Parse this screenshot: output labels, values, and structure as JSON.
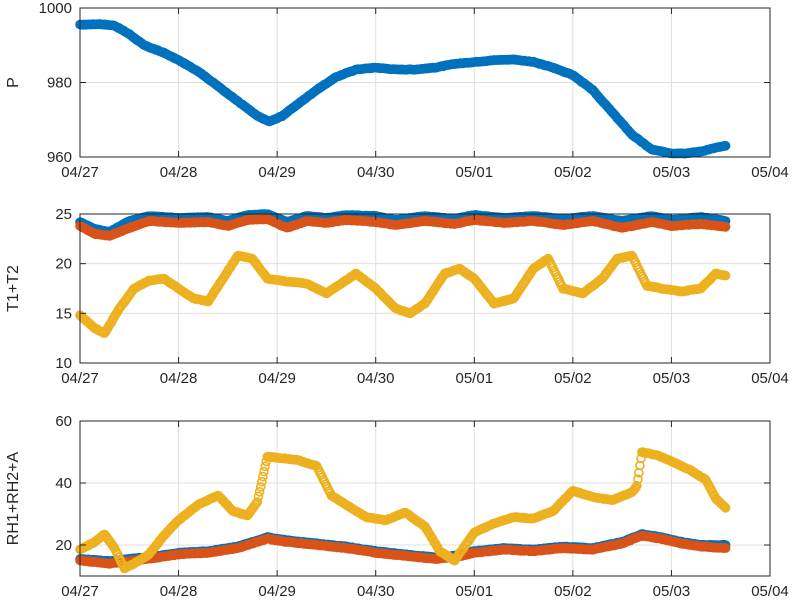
{
  "chart_data": [
    {
      "type": "scatter",
      "ylabel": "P",
      "xlabel": "",
      "xticks": [
        "04/27",
        "04/28",
        "04/29",
        "04/30",
        "05/01",
        "05/02",
        "05/03",
        "05/04"
      ],
      "xlim": [
        0,
        7
      ],
      "ylim": [
        960,
        1000
      ],
      "yticks": [
        960,
        980,
        1000
      ],
      "grid": true,
      "series": [
        {
          "color": "#0072BD",
          "points": [
            [
              0,
              995.5
            ],
            [
              0.2,
              995.7
            ],
            [
              0.35,
              995.3
            ],
            [
              0.5,
              993
            ],
            [
              0.65,
              990
            ],
            [
              0.85,
              988
            ],
            [
              1.0,
              986
            ],
            [
              1.2,
              983
            ],
            [
              1.4,
              979
            ],
            [
              1.6,
              975
            ],
            [
              1.8,
              971
            ],
            [
              1.92,
              969.5
            ],
            [
              2.05,
              971
            ],
            [
              2.2,
              974
            ],
            [
              2.4,
              978
            ],
            [
              2.6,
              981.5
            ],
            [
              2.8,
              983.5
            ],
            [
              3.0,
              984
            ],
            [
              3.2,
              983.5
            ],
            [
              3.4,
              983.5
            ],
            [
              3.6,
              984
            ],
            [
              3.8,
              985
            ],
            [
              4.0,
              985.5
            ],
            [
              4.2,
              986
            ],
            [
              4.4,
              986.2
            ],
            [
              4.6,
              985.5
            ],
            [
              4.8,
              984
            ],
            [
              5.0,
              982
            ],
            [
              5.2,
              978
            ],
            [
              5.4,
              972
            ],
            [
              5.6,
              966
            ],
            [
              5.8,
              962
            ],
            [
              6.0,
              961
            ],
            [
              6.15,
              961
            ],
            [
              6.3,
              961.5
            ],
            [
              6.45,
              962.5
            ],
            [
              6.55,
              963
            ]
          ]
        }
      ]
    },
    {
      "type": "scatter",
      "ylabel": "T1+T2",
      "xlabel": "",
      "xticks": [
        "04/27",
        "04/28",
        "04/29",
        "04/30",
        "05/01",
        "05/02",
        "05/03",
        "05/04"
      ],
      "xlim": [
        0,
        7
      ],
      "ylim": [
        10,
        25
      ],
      "yticks": [
        10,
        15,
        20,
        25
      ],
      "grid": true,
      "series": [
        {
          "color": "#0072BD",
          "points": [
            [
              0,
              24.2
            ],
            [
              0.15,
              23.5
            ],
            [
              0.3,
              23.2
            ],
            [
              0.5,
              24.3
            ],
            [
              0.7,
              24.8
            ],
            [
              1.0,
              24.6
            ],
            [
              1.3,
              24.7
            ],
            [
              1.5,
              24.3
            ],
            [
              1.7,
              24.9
            ],
            [
              1.9,
              25.0
            ],
            [
              2.1,
              24.2
            ],
            [
              2.3,
              24.8
            ],
            [
              2.5,
              24.6
            ],
            [
              2.7,
              24.9
            ],
            [
              3.0,
              24.8
            ],
            [
              3.2,
              24.4
            ],
            [
              3.5,
              24.8
            ],
            [
              3.8,
              24.5
            ],
            [
              4.0,
              24.9
            ],
            [
              4.3,
              24.6
            ],
            [
              4.6,
              24.8
            ],
            [
              4.9,
              24.5
            ],
            [
              5.2,
              24.8
            ],
            [
              5.5,
              24.3
            ],
            [
              5.8,
              24.8
            ],
            [
              6.0,
              24.4
            ],
            [
              6.3,
              24.7
            ],
            [
              6.55,
              24.3
            ]
          ]
        },
        {
          "color": "#D95319",
          "points": [
            [
              0,
              23.8
            ],
            [
              0.15,
              23.0
            ],
            [
              0.3,
              22.8
            ],
            [
              0.5,
              23.6
            ],
            [
              0.7,
              24.3
            ],
            [
              1.0,
              24.1
            ],
            [
              1.3,
              24.2
            ],
            [
              1.5,
              23.8
            ],
            [
              1.7,
              24.4
            ],
            [
              1.9,
              24.5
            ],
            [
              2.1,
              23.6
            ],
            [
              2.3,
              24.3
            ],
            [
              2.5,
              24.1
            ],
            [
              2.7,
              24.4
            ],
            [
              3.0,
              24.2
            ],
            [
              3.2,
              23.9
            ],
            [
              3.5,
              24.3
            ],
            [
              3.8,
              24.0
            ],
            [
              4.0,
              24.4
            ],
            [
              4.3,
              24.1
            ],
            [
              4.6,
              24.3
            ],
            [
              4.9,
              23.9
            ],
            [
              5.2,
              24.3
            ],
            [
              5.5,
              23.6
            ],
            [
              5.8,
              24.2
            ],
            [
              6.0,
              23.8
            ],
            [
              6.3,
              24.0
            ],
            [
              6.55,
              23.7
            ]
          ]
        },
        {
          "color": "#EDB120",
          "points": [
            [
              0,
              14.8
            ],
            [
              0.15,
              13.5
            ],
            [
              0.25,
              13.0
            ],
            [
              0.4,
              15.5
            ],
            [
              0.55,
              17.5
            ],
            [
              0.7,
              18.3
            ],
            [
              0.85,
              18.5
            ],
            [
              1.0,
              17.5
            ],
            [
              1.15,
              16.5
            ],
            [
              1.3,
              16.2
            ],
            [
              1.45,
              18.5
            ],
            [
              1.6,
              20.8
            ],
            [
              1.75,
              20.5
            ],
            [
              1.9,
              18.5
            ],
            [
              2.1,
              18.2
            ],
            [
              2.3,
              18.0
            ],
            [
              2.5,
              17.0
            ],
            [
              2.65,
              18.0
            ],
            [
              2.8,
              19.0
            ],
            [
              3.0,
              17.5
            ],
            [
              3.2,
              15.5
            ],
            [
              3.35,
              15.0
            ],
            [
              3.5,
              16.0
            ],
            [
              3.7,
              19.0
            ],
            [
              3.85,
              19.5
            ],
            [
              4.0,
              18.5
            ],
            [
              4.2,
              16.0
            ],
            [
              4.4,
              16.5
            ],
            [
              4.6,
              19.5
            ],
            [
              4.75,
              20.5
            ],
            [
              4.9,
              17.5
            ],
            [
              5.1,
              17.0
            ],
            [
              5.3,
              18.5
            ],
            [
              5.45,
              20.5
            ],
            [
              5.6,
              20.8
            ],
            [
              5.75,
              17.8
            ],
            [
              5.9,
              17.5
            ],
            [
              6.1,
              17.2
            ],
            [
              6.3,
              17.5
            ],
            [
              6.45,
              19.0
            ],
            [
              6.55,
              18.8
            ]
          ]
        }
      ]
    },
    {
      "type": "scatter",
      "ylabel": "RH1+RH2+A",
      "xlabel": "",
      "xticks": [
        "04/27",
        "04/28",
        "04/29",
        "04/30",
        "05/01",
        "05/02",
        "05/03",
        "05/04"
      ],
      "xlim": [
        0,
        7
      ],
      "ylim": [
        10,
        60
      ],
      "yticks": [
        20,
        40,
        60
      ],
      "grid": true,
      "series": [
        {
          "color": "#0072BD",
          "points": [
            [
              0,
              15.5
            ],
            [
              0.3,
              14.8
            ],
            [
              0.5,
              15.5
            ],
            [
              0.8,
              16.5
            ],
            [
              1.0,
              17.5
            ],
            [
              1.3,
              18.0
            ],
            [
              1.6,
              19.5
            ],
            [
              1.9,
              22.5
            ],
            [
              2.1,
              21.5
            ],
            [
              2.4,
              20.5
            ],
            [
              2.7,
              19.5
            ],
            [
              3.0,
              18.0
            ],
            [
              3.3,
              17.0
            ],
            [
              3.6,
              16.0
            ],
            [
              3.8,
              16.5
            ],
            [
              4.0,
              18.0
            ],
            [
              4.3,
              19.0
            ],
            [
              4.6,
              18.5
            ],
            [
              4.9,
              19.5
            ],
            [
              5.2,
              19.0
            ],
            [
              5.5,
              21.0
            ],
            [
              5.7,
              23.5
            ],
            [
              5.9,
              22.5
            ],
            [
              6.1,
              21.0
            ],
            [
              6.3,
              20.0
            ],
            [
              6.55,
              20.0
            ]
          ]
        },
        {
          "color": "#D95319",
          "points": [
            [
              0,
              15.0
            ],
            [
              0.3,
              14.0
            ],
            [
              0.5,
              14.8
            ],
            [
              0.8,
              16.0
            ],
            [
              1.0,
              17.0
            ],
            [
              1.3,
              17.5
            ],
            [
              1.6,
              19.0
            ],
            [
              1.9,
              22.0
            ],
            [
              2.1,
              21.0
            ],
            [
              2.4,
              20.0
            ],
            [
              2.7,
              19.0
            ],
            [
              3.0,
              17.5
            ],
            [
              3.3,
              16.5
            ],
            [
              3.6,
              15.5
            ],
            [
              3.8,
              16.0
            ],
            [
              4.0,
              17.5
            ],
            [
              4.3,
              18.5
            ],
            [
              4.6,
              18.0
            ],
            [
              4.9,
              19.0
            ],
            [
              5.2,
              18.5
            ],
            [
              5.5,
              20.5
            ],
            [
              5.7,
              23.0
            ],
            [
              5.9,
              22.0
            ],
            [
              6.1,
              20.5
            ],
            [
              6.3,
              19.5
            ],
            [
              6.55,
              19.0
            ]
          ]
        },
        {
          "color": "#EDB120",
          "points": [
            [
              0,
              18.5
            ],
            [
              0.15,
              21.0
            ],
            [
              0.25,
              23.5
            ],
            [
              0.35,
              19.0
            ],
            [
              0.45,
              12.5
            ],
            [
              0.55,
              14.0
            ],
            [
              0.7,
              17.0
            ],
            [
              0.85,
              23.0
            ],
            [
              1.0,
              28.0
            ],
            [
              1.2,
              33.0
            ],
            [
              1.4,
              36.0
            ],
            [
              1.55,
              31.0
            ],
            [
              1.7,
              29.5
            ],
            [
              1.8,
              34.0
            ],
            [
              1.9,
              48.5
            ],
            [
              2.05,
              48.0
            ],
            [
              2.2,
              47.5
            ],
            [
              2.4,
              45.5
            ],
            [
              2.55,
              36.0
            ],
            [
              2.7,
              33.0
            ],
            [
              2.9,
              29.0
            ],
            [
              3.1,
              28.0
            ],
            [
              3.3,
              30.5
            ],
            [
              3.5,
              26.0
            ],
            [
              3.65,
              18.0
            ],
            [
              3.8,
              15.0
            ],
            [
              4.0,
              24.0
            ],
            [
              4.2,
              27.0
            ],
            [
              4.4,
              29.0
            ],
            [
              4.6,
              28.5
            ],
            [
              4.8,
              31.0
            ],
            [
              5.0,
              37.5
            ],
            [
              5.2,
              35.5
            ],
            [
              5.4,
              34.5
            ],
            [
              5.6,
              37.0
            ],
            [
              5.65,
              39.0
            ],
            [
              5.7,
              50.0
            ],
            [
              5.85,
              49.0
            ],
            [
              6.0,
              47.0
            ],
            [
              6.2,
              44.0
            ],
            [
              6.35,
              41.0
            ],
            [
              6.45,
              35.0
            ],
            [
              6.55,
              32.0
            ]
          ]
        }
      ]
    }
  ]
}
